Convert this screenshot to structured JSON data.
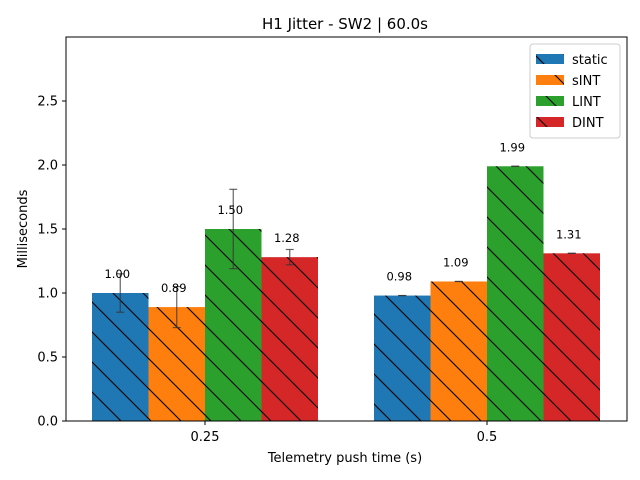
{
  "chart_data": {
    "type": "bar",
    "title": "H1 Jitter - SW2 | 60.0s",
    "xlabel": "Telemetry push time (s)",
    "ylabel": "Milliseconds",
    "categories": [
      "0.25",
      "0.5"
    ],
    "ylim": [
      0,
      3.0
    ],
    "yticks": [
      "0.0",
      "0.5",
      "1.0",
      "1.5",
      "2.0",
      "2.5"
    ],
    "grid": false,
    "legend_position": "top-right",
    "series": [
      {
        "name": "static",
        "color": "#1f77b4",
        "values": [
          1.0,
          0.98
        ],
        "labels": [
          "1.00",
          "0.98"
        ],
        "errors": [
          0.15,
          0.0
        ]
      },
      {
        "name": "sINT",
        "color": "#ff7f0e",
        "values": [
          0.89,
          1.09
        ],
        "labels": [
          "0.89",
          "1.09"
        ],
        "errors": [
          0.16,
          0.0
        ]
      },
      {
        "name": "LINT",
        "color": "#2ca02c",
        "values": [
          1.5,
          1.99
        ],
        "labels": [
          "1.50",
          "1.99"
        ],
        "errors": [
          0.31,
          0.0
        ]
      },
      {
        "name": "DINT",
        "color": "#d62728",
        "values": [
          1.28,
          1.31
        ],
        "labels": [
          "1.28",
          "1.31"
        ],
        "errors": [
          0.06,
          0.0
        ]
      }
    ]
  }
}
